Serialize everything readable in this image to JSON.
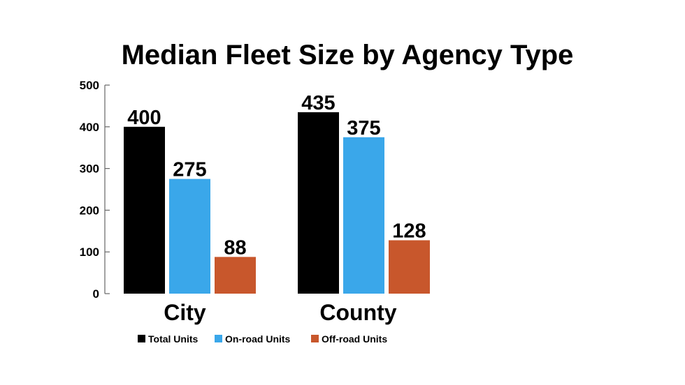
{
  "chart_data": {
    "type": "bar",
    "title": "Median Fleet Size by Agency Type",
    "xlabel": "",
    "ylabel": "",
    "categories": [
      "City",
      "County"
    ],
    "series": [
      {
        "name": "Total Units",
        "values": [
          400,
          435
        ],
        "color": "#000000"
      },
      {
        "name": "On-road Units",
        "values": [
          275,
          375
        ],
        "color": "#3aa7ea"
      },
      {
        "name": "Off-road Units",
        "values": [
          88,
          128
        ],
        "color": "#c8572c"
      }
    ],
    "ylim": [
      0,
      500
    ],
    "yticks": [
      0,
      100,
      200,
      300,
      400,
      500
    ],
    "data_labels": [
      "400",
      "275",
      "88",
      "435",
      "375",
      "128"
    ],
    "grid": false,
    "legend_position": "bottom"
  }
}
